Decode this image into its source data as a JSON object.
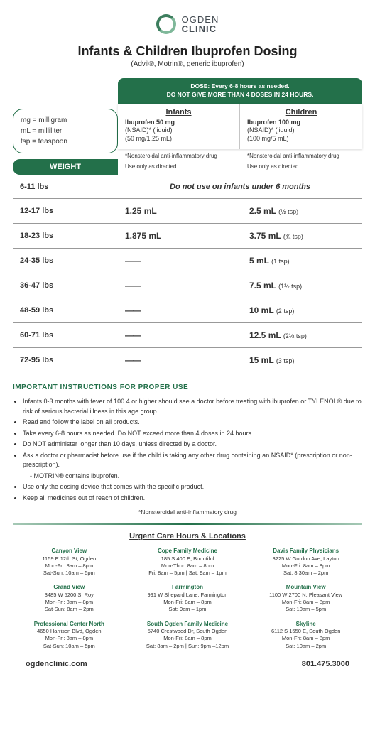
{
  "colors": {
    "brand_dark": "#23704a",
    "brand_light": "#7fb89a",
    "text": "#333333",
    "bg": "#ffffff",
    "border": "#999999"
  },
  "logo": {
    "line1": "OGDEN",
    "line2": "CLINIC"
  },
  "title": "Infants & Children Ibuprofen Dosing",
  "subtitle": "(Advil®, Motrin®, generic ibuprofen)",
  "abbrev": [
    "mg = milligram",
    "mL = milliliter",
    "tsp = teaspoon"
  ],
  "weight_label": "WEIGHT",
  "dose_header": {
    "line1": "DOSE: Every 6-8 hours as needed.",
    "line2": "DO NOT GIVE MORE THAN 4 DOSES IN 24 HOURS."
  },
  "columns": [
    {
      "title": "Infants",
      "bold": "Ibuprofen 50 mg",
      "sub1": "(NSAID)* (liquid)",
      "sub2": "(50 mg/1.25 mL)",
      "note1": "*Nonsteroidal anti-inflammatory drug",
      "note2": "Use only as directed."
    },
    {
      "title": "Children",
      "bold": "Ibuprofen 100 mg",
      "sub1": "(NSAID)* (liquid)",
      "sub2": "(100 mg/5 mL)",
      "note1": "*Nonsteroidal anti-inflammatory drug",
      "note2": "Use only as directed."
    }
  ],
  "rows": [
    {
      "weight": "6-11 lbs",
      "notuse": "Do not use on infants under 6 months"
    },
    {
      "weight": "12-17 lbs",
      "d1": "1.25 mL",
      "d2": "2.5 mL",
      "tsp": "(½ tsp)"
    },
    {
      "weight": "18-23 lbs",
      "d1": "1.875 mL",
      "d2": "3.75 mL",
      "tsp": "(¾ tsp)"
    },
    {
      "weight": "24-35 lbs",
      "d1": "——",
      "d2": "5 mL",
      "tsp": "(1 tsp)"
    },
    {
      "weight": "36-47 lbs",
      "d1": "——",
      "d2": "7.5 mL",
      "tsp": "(1½ tsp)"
    },
    {
      "weight": "48-59 lbs",
      "d1": "——",
      "d2": "10 mL",
      "tsp": "(2 tsp)"
    },
    {
      "weight": "60-71 lbs",
      "d1": "——",
      "d2": "12.5 mL",
      "tsp": "(2½ tsp)"
    },
    {
      "weight": "72-95 lbs",
      "d1": "——",
      "d2": "15 mL",
      "tsp": "(3 tsp)"
    }
  ],
  "instructions_title": "IMPORTANT INSTRUCTIONS FOR PROPER USE",
  "instructions": [
    "Infants 0-3 months with fever of 100.4 or higher should see a doctor before treating with ibuprofen or TYLENOL® due to risk of serious bacterial illness in this age group.",
    "Read and follow the label on all products.",
    "Take every 6-8 hours as needed. Do NOT exceed more than 4 doses in 24 hours.",
    "Do NOT administer longer than 10 days, unless directed by a doctor.",
    "Ask a doctor or pharmacist before use if the child is taking any other drug containing an NSAID* (prescription or non-prescription).",
    "- MOTRIN® contains ibuprofen.",
    "Use only the dosing device that comes with the specific product.",
    "Keep all medicines out of reach of children."
  ],
  "nsaid_note": "*Nonsteroidal anti-inflammatory drug",
  "uc_title": "Urgent Care Hours & Locations",
  "locations": [
    {
      "name": "Canyon View",
      "addr": "1159 E 12th St, Ogden",
      "h1": "Mon-Fri: 8am – 8pm",
      "h2": "Sat-Sun: 10am – 5pm"
    },
    {
      "name": "Cope Family Medicine",
      "addr": "185 S 400 E, Bountiful",
      "h1": "Mon-Thur: 8am – 8pm",
      "h2": "Fri: 8am – 5pm | Sat: 9am – 1pm"
    },
    {
      "name": "Davis Family Physicians",
      "addr": "3225 W Gordon Ave, Layton",
      "h1": "Mon-Fri: 8am – 8pm",
      "h2": "Sat: 8:30am – 2pm"
    },
    {
      "name": "Grand View",
      "addr": "3485 W 5200 S, Roy",
      "h1": "Mon-Fri: 8am – 8pm",
      "h2": "Sat-Sun: 8am – 2pm"
    },
    {
      "name": "Farmington",
      "addr": "991 W Shepard Lane, Farmington",
      "h1": "Mon-Fri: 8am – 8pm",
      "h2": "Sat: 9am – 1pm"
    },
    {
      "name": "Mountain View",
      "addr": "1100 W 2700 N, Pleasant View",
      "h1": "Mon-Fri: 8am – 8pm",
      "h2": "Sat: 10am – 5pm"
    },
    {
      "name": "Professional Center North",
      "addr": "4650 Harrison Blvd, Ogden",
      "h1": "Mon-Fri: 8am – 8pm",
      "h2": "Sat-Sun: 10am – 5pm"
    },
    {
      "name": "South Ogden Family Medicine",
      "addr": "5740 Crestwood Dr, South Ogden",
      "h1": "Mon-Fri: 8am – 8pm",
      "h2": "Sat: 8am – 2pm | Sun: 9pm –12pm"
    },
    {
      "name": "Skyline",
      "addr": "6112 S 1550 E, South Ogden",
      "h1": "Mon-Fri: 8am – 8pm",
      "h2": "Sat: 10am – 2pm"
    }
  ],
  "footer": {
    "site": "ogdenclinic.com",
    "phone": "801.475.3000"
  }
}
